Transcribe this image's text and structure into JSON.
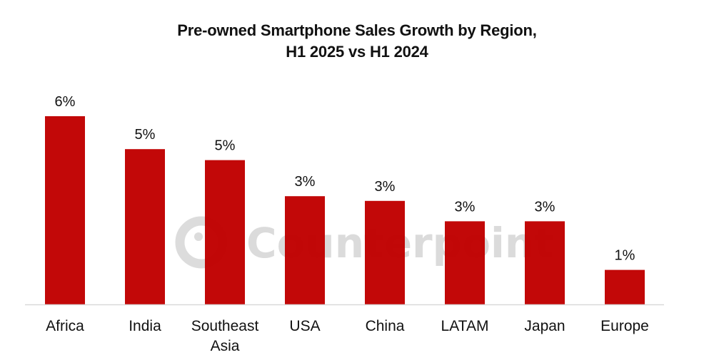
{
  "chart_data": {
    "type": "bar",
    "title_line1": "Pre-owned Smartphone Sales Growth by Region,",
    "title_line2": "H1 2025 vs H1 2024",
    "xlabel": "",
    "ylabel": "",
    "categories": [
      "Africa",
      "India",
      "Southeast Asia",
      "USA",
      "China",
      "LATAM",
      "Japan",
      "Europe"
    ],
    "category_lines": [
      [
        "Africa"
      ],
      [
        "India"
      ],
      [
        "Southeast",
        "Asia"
      ],
      [
        "USA"
      ],
      [
        "China"
      ],
      [
        "LATAM"
      ],
      [
        "Japan"
      ],
      [
        "Europe"
      ]
    ],
    "values": [
      6.0,
      4.95,
      4.6,
      3.45,
      3.3,
      2.65,
      2.65,
      1.1
    ],
    "data_labels": [
      "6%",
      "5%",
      "5%",
      "3%",
      "3%",
      "3%",
      "3%",
      "1%"
    ],
    "unit": "%",
    "ylim": [
      0,
      6
    ],
    "grid": false,
    "legend": "none",
    "bar_color": "#c00000",
    "watermark": "Counterpoint"
  }
}
